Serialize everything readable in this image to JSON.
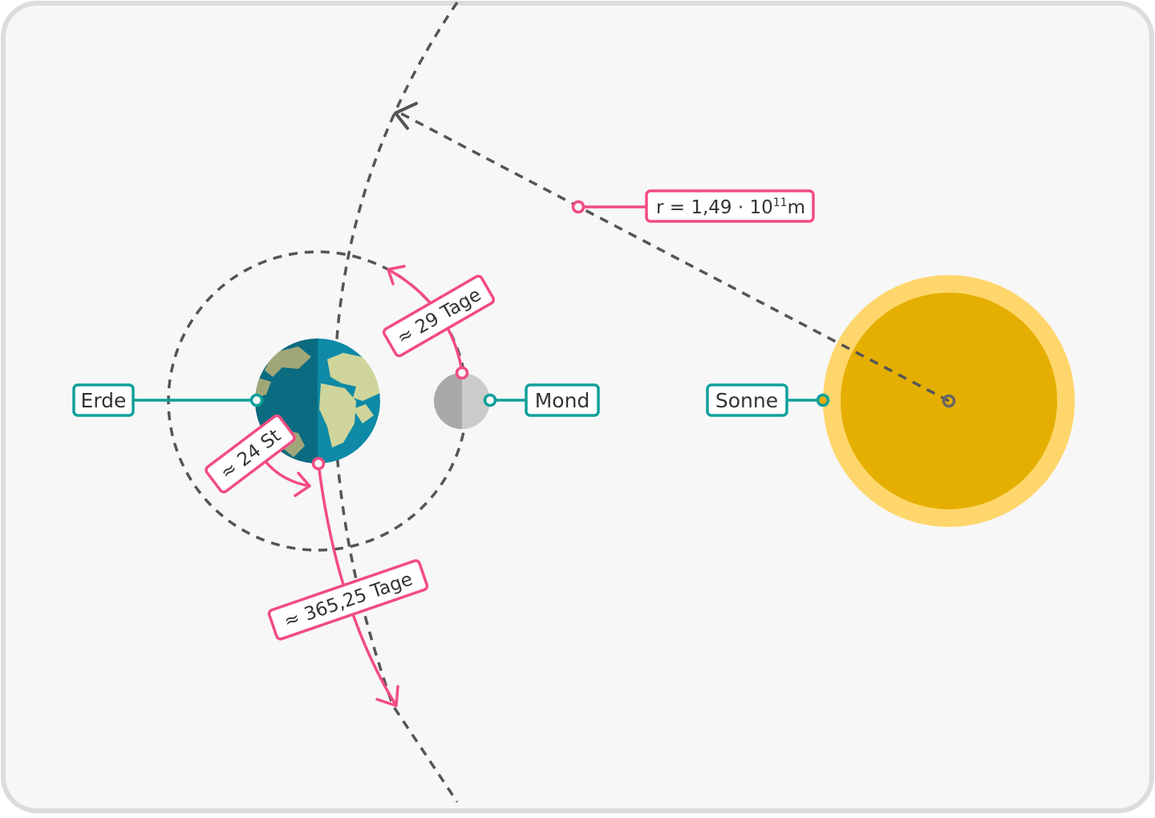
{
  "labels": {
    "earth": "Erde",
    "moon": "Mond",
    "sun": "Sonne",
    "radius_prefix": "r = 1,49 · 10",
    "radius_exponent": "11",
    "radius_unit": "m",
    "moon_period": "≈ 29 Tage",
    "day_period": "≈ 24 St",
    "year_period": "≈ 365,25 Tage"
  },
  "colors": {
    "background": "#f7f7f7",
    "frame": "#dcdcdc",
    "teal": "#10a09a",
    "pink": "#f24b82",
    "sun_outer": "#ffd66b",
    "sun_inner": "#e4af00",
    "ocean": "#0e8aa6",
    "land": "#cfd59a",
    "moon_light": "#cccccc",
    "moon_dark": "#a9a9a9",
    "dash": "#555555"
  }
}
